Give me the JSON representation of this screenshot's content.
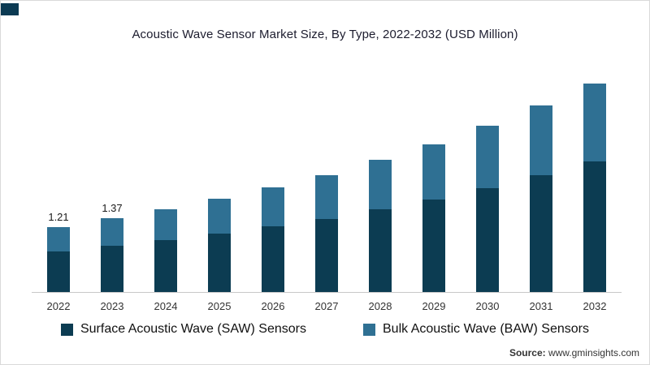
{
  "title": "Acoustic Wave Sensor Market Size, By Type, 2022-2032 (USD Million)",
  "source": {
    "prefix": "Source:",
    "text": " www.gminsights.com"
  },
  "logo": {
    "color": "#0b3a52"
  },
  "chart_data": {
    "type": "bar",
    "stacked": true,
    "title": "Acoustic Wave Sensor Market Size, By Type, 2022-2032 (USD Million)",
    "xlabel": "",
    "ylabel": "USD Million",
    "ylim": [
      0,
      4
    ],
    "grid": false,
    "legend_position": "bottom",
    "categories": [
      "2022",
      "2023",
      "2024",
      "2025",
      "2026",
      "2027",
      "2028",
      "2029",
      "2030",
      "2031",
      "2032"
    ],
    "series": [
      {
        "name": "Surface Acoustic Wave (SAW) Sensors",
        "color": "#0c3c52",
        "values": [
          0.76,
          0.86,
          0.97,
          1.09,
          1.22,
          1.37,
          1.54,
          1.73,
          1.94,
          2.18,
          2.44
        ]
      },
      {
        "name": "Bulk Acoustic Wave (BAW) Sensors",
        "color": "#2f7093",
        "values": [
          0.45,
          0.51,
          0.58,
          0.65,
          0.73,
          0.82,
          0.92,
          1.03,
          1.16,
          1.3,
          1.46
        ]
      }
    ],
    "totals": [
      1.21,
      1.37,
      1.55,
      1.74,
      1.95,
      2.19,
      2.46,
      2.76,
      3.1,
      3.48,
      3.9
    ],
    "data_labels": {
      "2022": "1.21",
      "2023": "1.37"
    }
  }
}
